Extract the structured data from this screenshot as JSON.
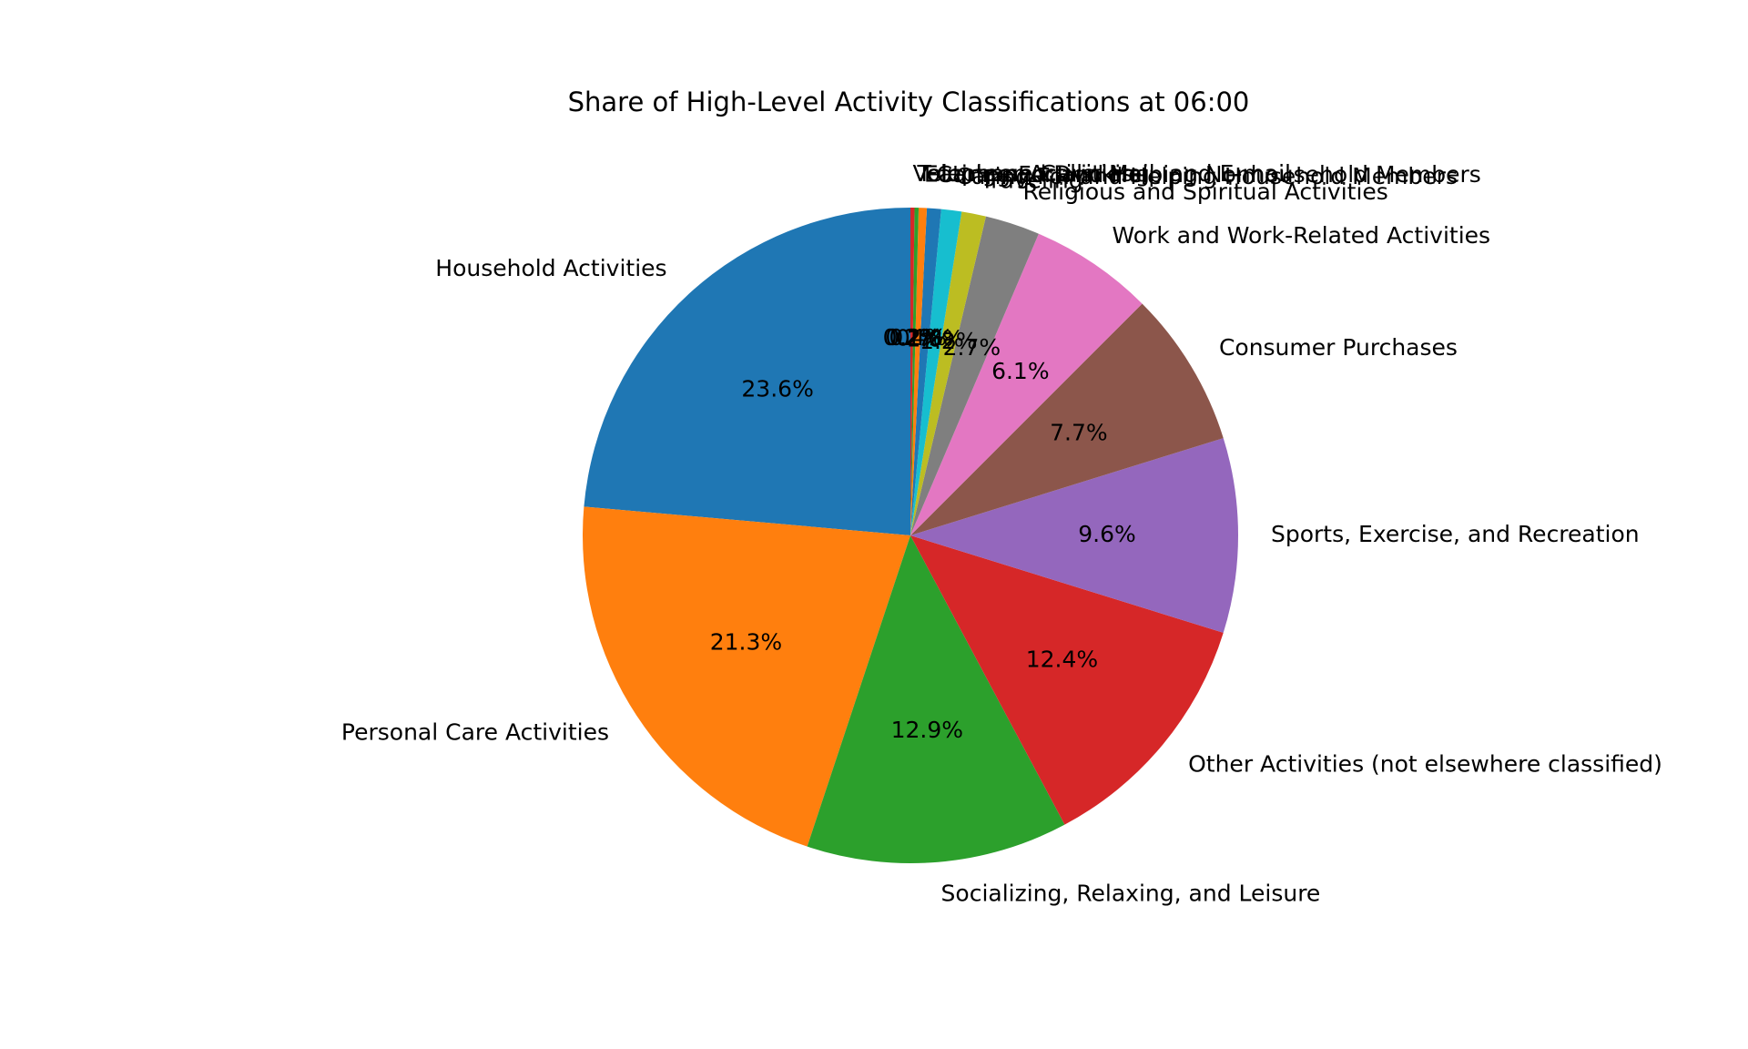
{
  "chart_data": {
    "type": "pie",
    "title": "Share of High-Level Activity Classifications at 06:00",
    "start_angle_deg": 90,
    "direction": "counterclockwise",
    "slices": [
      {
        "label": "Household Activities",
        "value": 23.6,
        "pct_label": "23.6%",
        "color": "#1f77b4"
      },
      {
        "label": "Personal Care Activities",
        "value": 21.3,
        "pct_label": "21.3%",
        "color": "#ff7f0e"
      },
      {
        "label": "Socializing, Relaxing, and Leisure",
        "value": 12.9,
        "pct_label": "12.9%",
        "color": "#2ca02c"
      },
      {
        "label": "Other Activities (not elsewhere classified)",
        "value": 12.4,
        "pct_label": "12.4%",
        "color": "#d62728"
      },
      {
        "label": "Sports, Exercise, and Recreation",
        "value": 9.6,
        "pct_label": "9.6%",
        "color": "#9467bd"
      },
      {
        "label": "Consumer Purchases",
        "value": 7.7,
        "pct_label": "7.7%",
        "color": "#8c564b"
      },
      {
        "label": "Work and Work-Related Activities",
        "value": 6.1,
        "pct_label": "6.1%",
        "color": "#e377c2"
      },
      {
        "label": "Religious and Spiritual Activities",
        "value": 2.7,
        "pct_label": "2.7%",
        "color": "#7f7f7f"
      },
      {
        "label": "Traveling",
        "value": 1.2,
        "pct_label": "1.2%",
        "color": "#bcbd22"
      },
      {
        "label": "Caring For and Helping Household Members",
        "value": 1.0,
        "pct_label": "1.0%",
        "color": "#17becf"
      },
      {
        "label": "Caring For and Helping Nonhousehold Members",
        "value": 0.7,
        "pct_label": "0.7%",
        "color": "#1f77b4"
      },
      {
        "label": "Eating and Drinking",
        "value": 0.4,
        "pct_label": "0.4%",
        "color": "#ff7f0e"
      },
      {
        "label": "Telephone Calls, Mail, and E-mail",
        "value": 0.2,
        "pct_label": "0.2%",
        "color": "#2ca02c"
      },
      {
        "label": "Volunteer Activities",
        "value": 0.2,
        "pct_label": "0.2%",
        "color": "#d62728"
      }
    ]
  }
}
